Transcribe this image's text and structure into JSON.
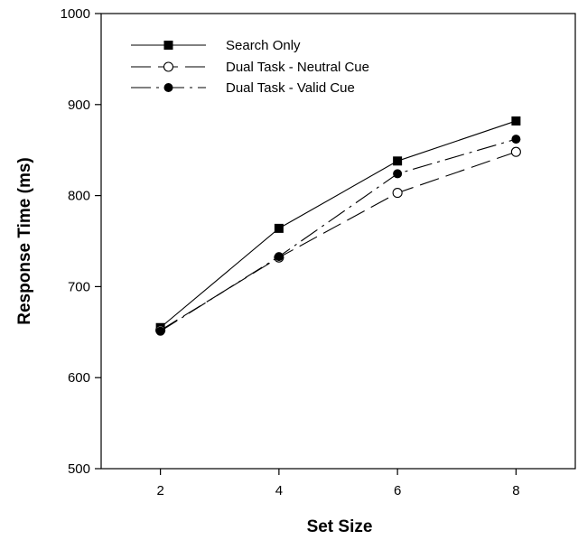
{
  "chart_data": {
    "type": "line",
    "xlabel": "Set Size",
    "ylabel": "Response Time (ms)",
    "x": [
      2,
      4,
      6,
      8
    ],
    "xlim": [
      1,
      9
    ],
    "ylim": [
      500,
      1000
    ],
    "x_ticks": [
      "2",
      "4",
      "6",
      "8"
    ],
    "y_ticks": [
      "500",
      "600",
      "700",
      "800",
      "900",
      "1000"
    ],
    "grid": false,
    "legend_position": "top-left",
    "series": [
      {
        "name": "Search Only",
        "values": [
          655,
          764,
          838,
          882
        ],
        "line": "solid",
        "marker": "filled-square"
      },
      {
        "name": "Dual Task - Neutral Cue",
        "values": [
          652,
          732,
          803,
          848
        ],
        "line": "dashed",
        "marker": "open-circle"
      },
      {
        "name": "Dual Task - Valid Cue",
        "values": [
          651,
          733,
          824,
          862
        ],
        "line": "dash-dot",
        "marker": "filled-circle"
      }
    ]
  }
}
